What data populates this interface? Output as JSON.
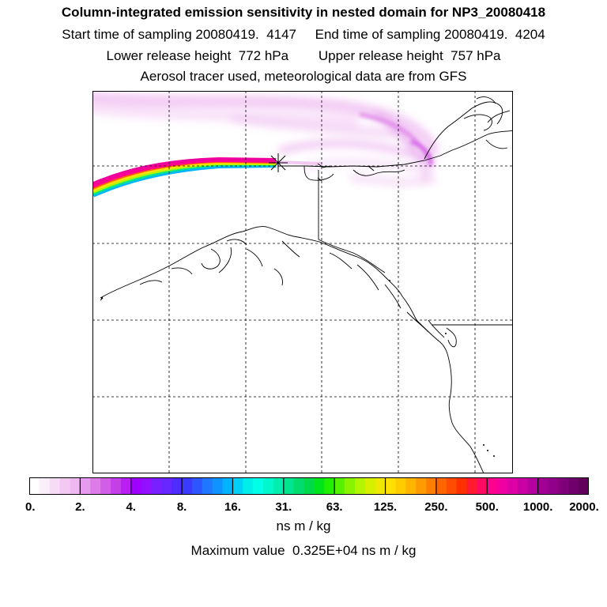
{
  "header": {
    "title": "Column-integrated emission sensitivity in nested domain for NP3_20080418",
    "sampling_line": "Start time of sampling 20080419.  4147     End time of sampling 20080419.  4204",
    "release_line": "Lower release height  772 hPa        Upper release height  757 hPa",
    "source_line": "Aerosol tracer used, meteorological data are from GFS"
  },
  "colorbar": {
    "units": "ns m / kg",
    "tick_labels": [
      "0.",
      "2.",
      "4.",
      "8.",
      "16.",
      "31.",
      "63.",
      "125.",
      "250.",
      "500.",
      "1000.",
      "2000."
    ],
    "colors": [
      "#ffffff",
      "#fbeefb",
      "#f7dcf7",
      "#f3c9f4",
      "#efb8f3",
      "#e79bee",
      "#dd7ce9",
      "#d35ee6",
      "#c53fe6",
      "#b81ff0",
      "#a000ff",
      "#9010ff",
      "#7a1fff",
      "#6628ff",
      "#4d2cff",
      "#3b3bff",
      "#2e56ff",
      "#1f76ff",
      "#0f93ff",
      "#00b2ff",
      "#00d0f5",
      "#00eee8",
      "#00ffe6",
      "#00f8cc",
      "#00eeb0",
      "#00e58f",
      "#00dc6e",
      "#00d94b",
      "#00e41a",
      "#22ee00",
      "#55f200",
      "#88f400",
      "#b3f500",
      "#d6f000",
      "#efe800",
      "#ffe000",
      "#ffcc00",
      "#ffb400",
      "#ff9a00",
      "#ff7e00",
      "#ff6600",
      "#ff4c00",
      "#ff3000",
      "#ff1a30",
      "#ff0a60",
      "#ff0090",
      "#f000a0",
      "#dd00a4",
      "#c800a5",
      "#b400a0",
      "#a20095",
      "#900089",
      "#800079",
      "#70006a",
      "#62005c"
    ]
  },
  "max_value_text": "Maximum value  0.325E+04 ns m / kg"
}
